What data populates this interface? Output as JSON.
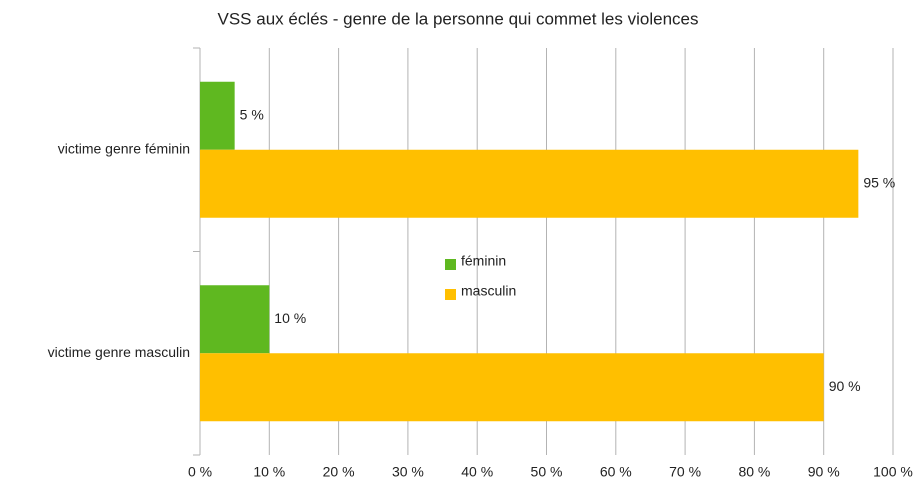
{
  "chart_data": {
    "type": "bar",
    "orientation": "horizontal",
    "title": "VSS aux éclés - genre de la personne qui commet les violences",
    "categories": [
      "victime genre féminin",
      "victime genre masculin"
    ],
    "series": [
      {
        "name": "féminin",
        "color": "#5fb820",
        "values": [
          5,
          10
        ],
        "value_labels": [
          "5 %",
          "10 %"
        ]
      },
      {
        "name": "masculin",
        "color": "#ffbf00",
        "values": [
          95,
          90
        ],
        "value_labels": [
          "95 %",
          "90 %"
        ]
      }
    ],
    "xlim": [
      0,
      100
    ],
    "xticks": [
      {
        "value": 0,
        "label": "0 %"
      },
      {
        "value": 10,
        "label": "10 %"
      },
      {
        "value": 20,
        "label": "20 %"
      },
      {
        "value": 30,
        "label": "30 %"
      },
      {
        "value": 40,
        "label": "40 %"
      },
      {
        "value": 50,
        "label": "50 %"
      },
      {
        "value": 60,
        "label": "60 %"
      },
      {
        "value": 70,
        "label": "70 %"
      },
      {
        "value": 80,
        "label": "80 %"
      },
      {
        "value": 90,
        "label": "90 %"
      },
      {
        "value": 100,
        "label": "100 %"
      }
    ],
    "grid": true,
    "legend": "center"
  }
}
